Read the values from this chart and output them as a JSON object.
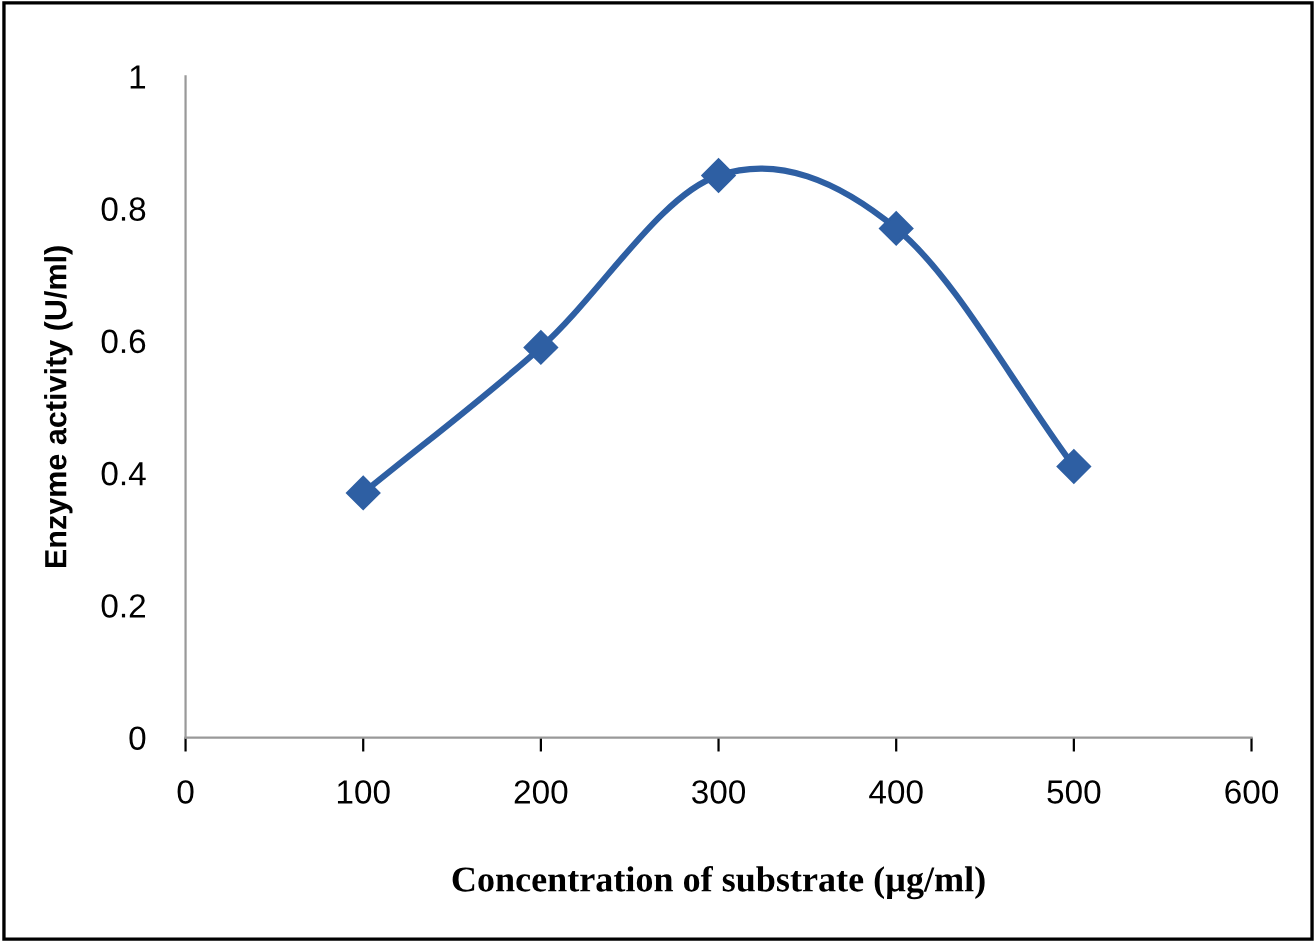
{
  "chart_data": {
    "type": "line",
    "xlabel": "Concentration of substrate (µg/ml)",
    "ylabel": "Enzyme activity (U/ml)",
    "x": [
      100,
      200,
      300,
      400,
      500
    ],
    "series": [
      {
        "color": "#2e5fa3",
        "values": [
          0.37,
          0.59,
          0.85,
          0.77,
          0.41
        ]
      }
    ],
    "xlim": [
      0,
      600
    ],
    "xticks": [
      0,
      100,
      200,
      300,
      400,
      500,
      600
    ],
    "ylim": [
      0,
      1
    ],
    "yticks": [
      0,
      0.2,
      0.4,
      0.6,
      0.8,
      1
    ],
    "marker": "diamond",
    "line_style": "solid",
    "grid": false,
    "legend": false
  }
}
